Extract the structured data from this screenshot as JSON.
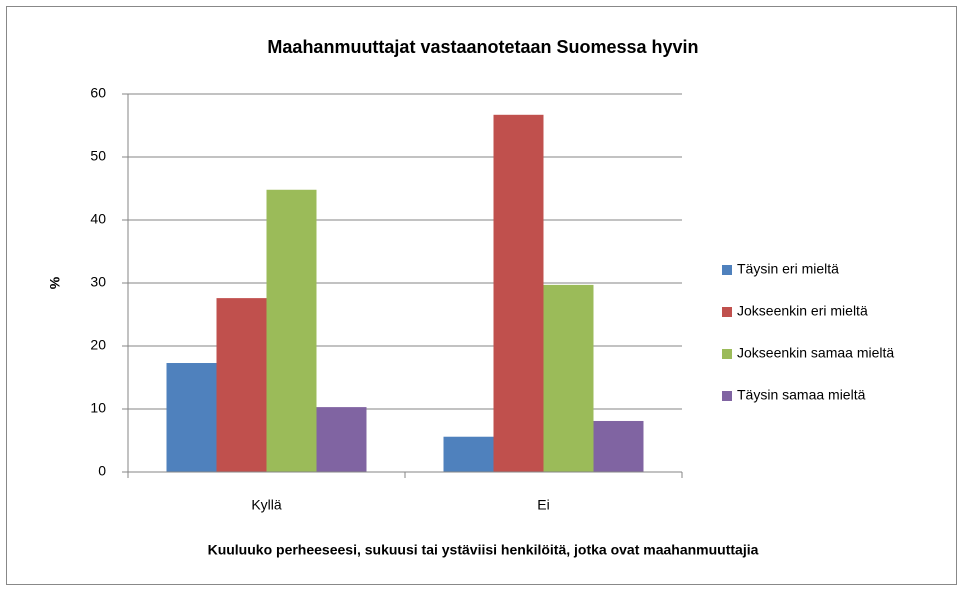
{
  "chart_data": {
    "type": "bar",
    "title": "Maahanmuuttajat vastaanotetaan Suomessa hyvin",
    "x_label": "Kuuluuko perheeseesi, sukuusi tai ystäviisi henkilöitä, jotka ovat maahanmuuttajia",
    "y_label": "%",
    "categories": [
      "Kyllä",
      "Ei"
    ],
    "series": [
      {
        "name": "Täysin eri mieltä",
        "color": "#4f81bd",
        "values": [
          17.3,
          5.6
        ]
      },
      {
        "name": "Jokseenkin eri mieltä",
        "color": "#c0504d",
        "values": [
          27.6,
          56.7
        ]
      },
      {
        "name": "Jokseenkin samaa mieltä",
        "color": "#9bbb59",
        "values": [
          44.8,
          29.7
        ]
      },
      {
        "name": "Täysin samaa mieltä",
        "color": "#8064a2",
        "values": [
          10.3,
          8.1
        ]
      }
    ],
    "ylim": [
      0,
      60
    ],
    "yticks": [
      0,
      10,
      20,
      30,
      40,
      50,
      60
    ],
    "grid": true,
    "legend": "right"
  }
}
